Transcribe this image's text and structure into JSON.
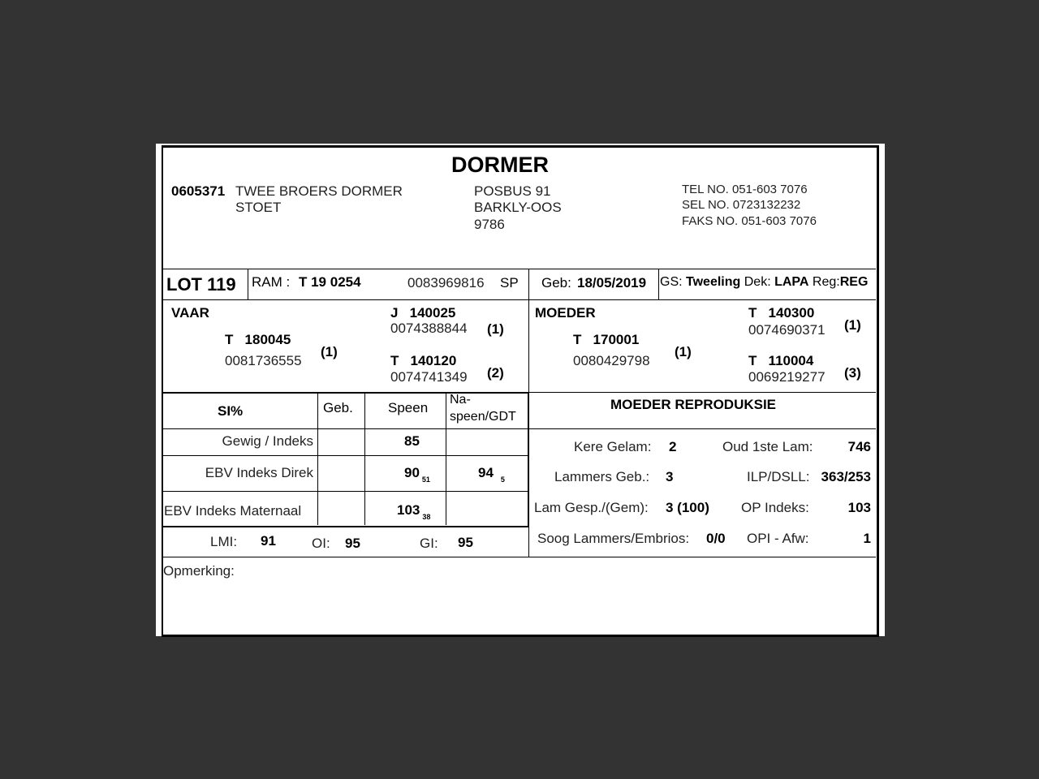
{
  "title": "DORMER",
  "breeder": {
    "code": "0605371",
    "name_line1": "TWEE BROERS DORMER",
    "name_line2": "STOET"
  },
  "address": {
    "line1": "POSBUS 91",
    "line2": "BARKLY-OOS",
    "line3": "9786"
  },
  "contact": {
    "tel": "TEL NO. 051-603 7076",
    "sel": "SEL NO. 0723132232",
    "faks": "FAKS NO. 051-603 7076"
  },
  "lot": "LOT 119",
  "ram": {
    "label": "RAM :",
    "id": "T 19 0254",
    "number": "0083969816",
    "suffix": "SP"
  },
  "geb": {
    "label": "Geb:",
    "value": "18/05/2019"
  },
  "gs": {
    "label": "GS:",
    "value": "Tweeling",
    "dek_label": "Dek:",
    "dek_value": "LAPA",
    "reg_label": "Reg:",
    "reg_value": "REG"
  },
  "vaar": {
    "label": "VAAR",
    "id": "T   180045",
    "number": "0081736555",
    "grade": "(1)",
    "sire": {
      "id": "J   140025",
      "number": "0074388844",
      "grade": "(1)"
    },
    "dam": {
      "id": "T   140120",
      "number": "0074741349",
      "grade": "(2)"
    }
  },
  "moeder": {
    "label": "MOEDER",
    "id": "T   170001",
    "number": "0080429798",
    "grade": "(1)",
    "sire": {
      "id": "T   140300",
      "number": "0074690371",
      "grade": "(1)"
    },
    "dam": {
      "id": "T   110004",
      "number": "0069219277",
      "grade": "(3)"
    }
  },
  "si_table": {
    "headers": [
      "SI%",
      "Geb.",
      "Speen",
      "Na-",
      "speen/GDT"
    ],
    "rows": [
      {
        "label": "Gewig / Indeks",
        "geb": "",
        "speen": "85",
        "speen_sub": "",
        "na": "",
        "na_sub": ""
      },
      {
        "label": "EBV Indeks Direk",
        "geb": "",
        "speen": "90",
        "speen_sub": "51",
        "na": "94",
        "na_sub": "5"
      },
      {
        "label": "EBV Indeks Maternaal",
        "geb": "",
        "speen": "103",
        "speen_sub": "38",
        "na": "",
        "na_sub": ""
      }
    ]
  },
  "indices": {
    "lmi_label": "LMI:",
    "lmi": "91",
    "oi_label": "OI:",
    "oi": "95",
    "gi_label": "GI:",
    "gi": "95"
  },
  "reproduksie": {
    "title": "MOEDER REPRODUKSIE",
    "kere_label": "Kere Gelam:",
    "kere": "2",
    "oud_label": "Oud 1ste Lam:",
    "oud": "746",
    "lammers_label": "Lammers Geb.:",
    "lammers": "3",
    "ilp_label": "ILP/DSLL:",
    "ilp": "363/253",
    "gesp_label": "Lam Gesp./(Gem):",
    "gesp": "3 (100)",
    "op_label": "OP Indeks:",
    "op": "103",
    "soog_label": "Soog Lammers/Embrios:",
    "soog": "0/0",
    "opi_label": "OPI - Afw:",
    "opi": "1"
  },
  "opmerking_label": "Opmerking:"
}
